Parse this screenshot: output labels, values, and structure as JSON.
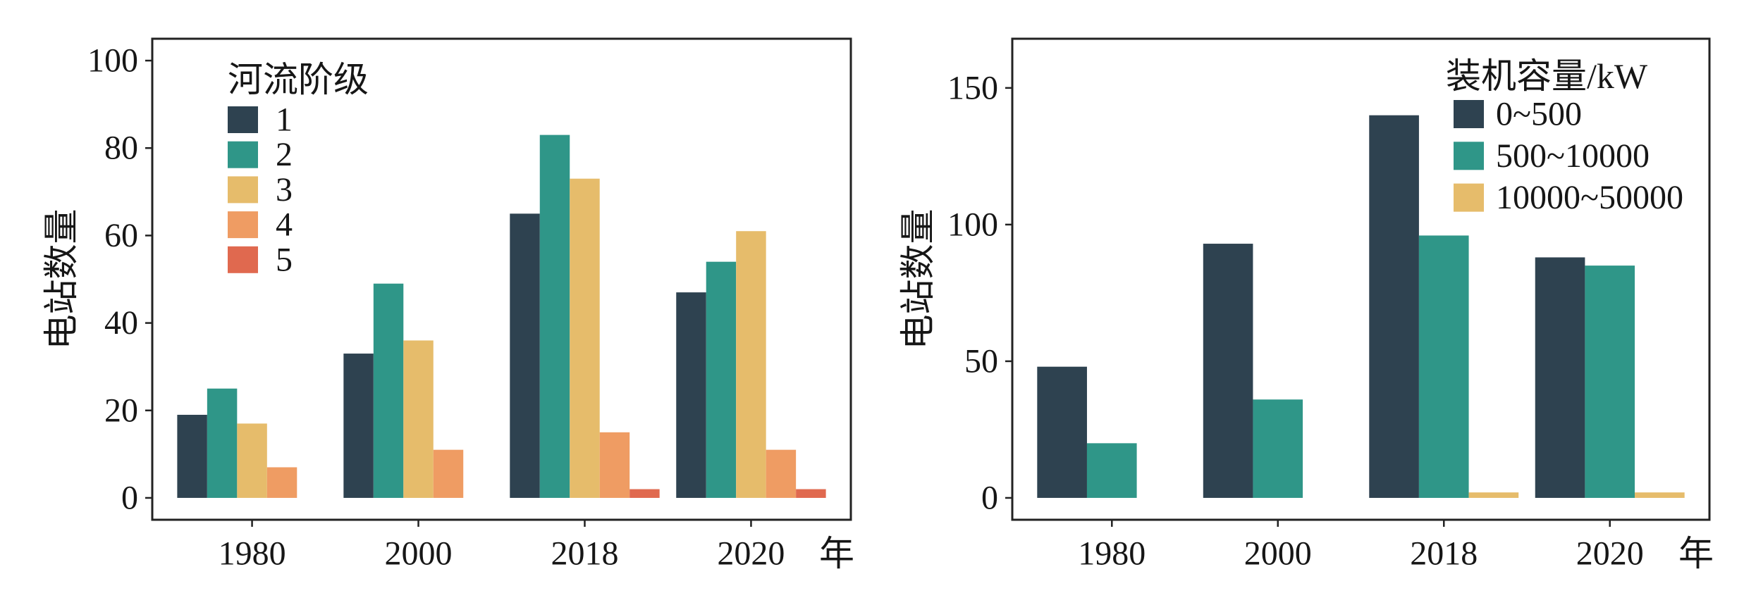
{
  "chart_data": [
    {
      "type": "bar",
      "categories": [
        "1980",
        "2000",
        "2018",
        "2020"
      ],
      "xlabel": "年",
      "ylabel": "电站数量",
      "ylim": [
        -5,
        105
      ],
      "yticks": [
        0,
        20,
        40,
        60,
        80,
        100
      ],
      "grid": false,
      "legend": {
        "title": "河流阶级",
        "position": "upper-left"
      },
      "series": [
        {
          "name": "1",
          "color": "#2e4250",
          "values": [
            19,
            33,
            65,
            47
          ]
        },
        {
          "name": "2",
          "color": "#2f9688",
          "values": [
            25,
            49,
            83,
            54
          ]
        },
        {
          "name": "3",
          "color": "#e6bc6b",
          "values": [
            17,
            36,
            73,
            61
          ]
        },
        {
          "name": "4",
          "color": "#ef9c63",
          "values": [
            7,
            11,
            15,
            11
          ]
        },
        {
          "name": "5",
          "color": "#e0694f",
          "values": [
            0,
            0,
            2,
            2
          ]
        }
      ]
    },
    {
      "type": "bar",
      "categories": [
        "1980",
        "2000",
        "2018",
        "2020"
      ],
      "xlabel": "年",
      "ylabel": "电站数量",
      "ylim": [
        -8,
        168
      ],
      "yticks": [
        0,
        50,
        100,
        150
      ],
      "grid": false,
      "legend": {
        "title": "装机容量/kW",
        "position": "upper-right"
      },
      "series": [
        {
          "name": "0~500",
          "color": "#2e4250",
          "values": [
            48,
            93,
            140,
            88
          ]
        },
        {
          "name": "500~10000",
          "color": "#2f9688",
          "values": [
            20,
            36,
            96,
            85
          ]
        },
        {
          "name": "10000~50000",
          "color": "#e6bc6b",
          "values": [
            0,
            0,
            2,
            2
          ]
        }
      ]
    }
  ]
}
